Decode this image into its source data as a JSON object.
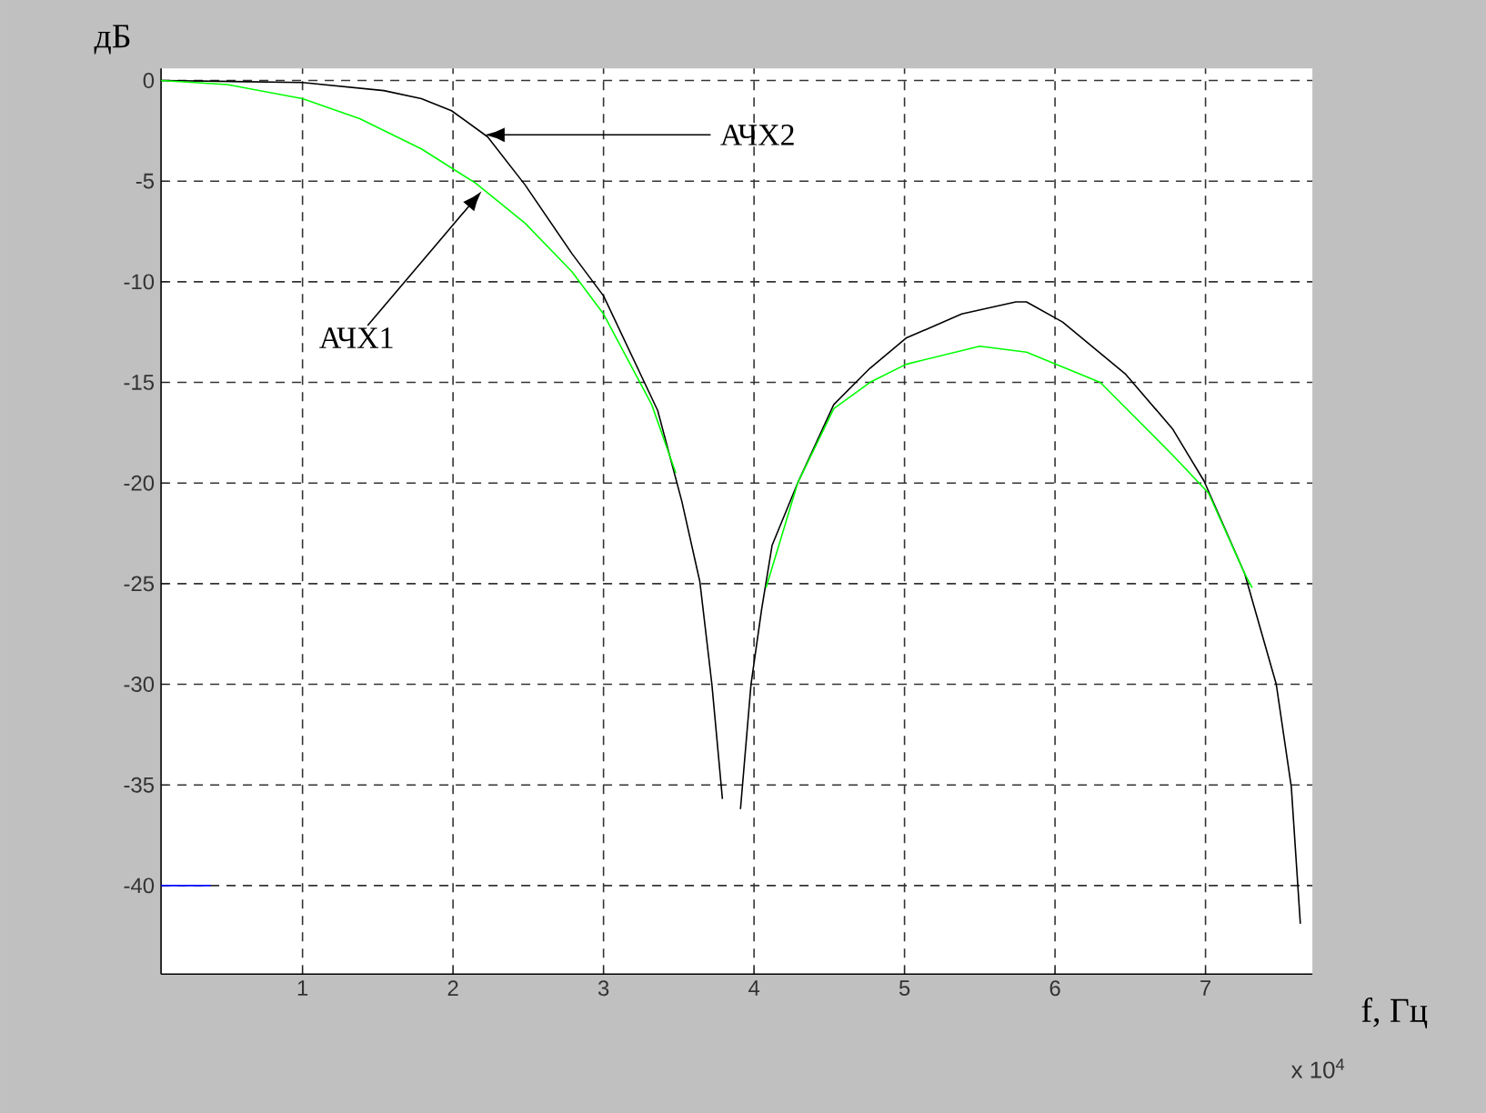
{
  "chart_data": {
    "type": "line",
    "xlabel": "f, Гц",
    "ylabel": "дБ",
    "annotations": [
      "АЧХ1",
      "АЧХ2",
      "x 10$^{4}$"
    ],
    "series": [
      {
        "color": "#000000",
        "x": [
          0.06,
          1.0,
          1.54,
          1.79,
          1.99,
          2.23,
          2.48,
          2.79,
          3.0,
          3.36,
          3.52,
          3.64,
          3.72,
          3.79,
          3.85,
          3.91,
          3.98,
          4.05,
          4.12,
          4.29,
          4.53,
          4.77,
          5.01,
          5.38,
          5.74,
          5.81,
          6.05,
          6.47,
          6.78,
          6.99,
          7.26,
          7.47,
          7.57,
          7.63
        ],
        "values": [
          0,
          -0.1,
          -0.5,
          -0.9,
          -1.5,
          -2.8,
          -5.2,
          -8.6,
          -10.7,
          -16.4,
          -20.9,
          -24.9,
          -30,
          -35.7,
          null,
          -36.2,
          -30,
          -26.3,
          -23.1,
          -20,
          -16.1,
          -14.3,
          -12.8,
          -11.6,
          -11,
          -11,
          -12,
          -14.6,
          -17.3,
          -19.9,
          -24.5,
          -30,
          -35.1,
          -41.9
        ]
      },
      {
        "color": "#00ff00",
        "x": [
          0.06,
          0.5,
          1.0,
          1.38,
          1.79,
          2.15,
          2.48,
          2.79,
          3.0,
          3.32,
          3.48,
          3.8,
          4.08,
          4.29,
          4.53,
          4.77,
          5.01,
          5.5,
          5.81,
          6.3,
          6.78,
          7.02,
          7.26,
          7.31
        ],
        "values": [
          0,
          -0.2,
          -0.9,
          -1.9,
          -3.4,
          -5.1,
          -7.1,
          -9.5,
          -11.6,
          -16.1,
          -19.5,
          null,
          -25.2,
          -20,
          -16.3,
          -15,
          -14.1,
          -13.2,
          -13.5,
          -15,
          -18.6,
          -20.5,
          -24.5,
          -25.2
        ]
      },
      {
        "color": "#0000ff",
        "x": [
          0.06,
          0.39
        ],
        "values": [
          -40,
          -40
        ]
      }
    ],
    "xlim": [
      0.06,
      7.71
    ],
    "ylim": [
      -44.4,
      0.6
    ],
    "xticks": [
      1,
      2,
      3,
      4,
      5,
      6,
      7
    ],
    "yticks": [
      0,
      -5,
      -10,
      -15,
      -20,
      -25,
      -30,
      -35,
      -40
    ],
    "grid": true,
    "marker": "none",
    "line_style": "solid"
  }
}
